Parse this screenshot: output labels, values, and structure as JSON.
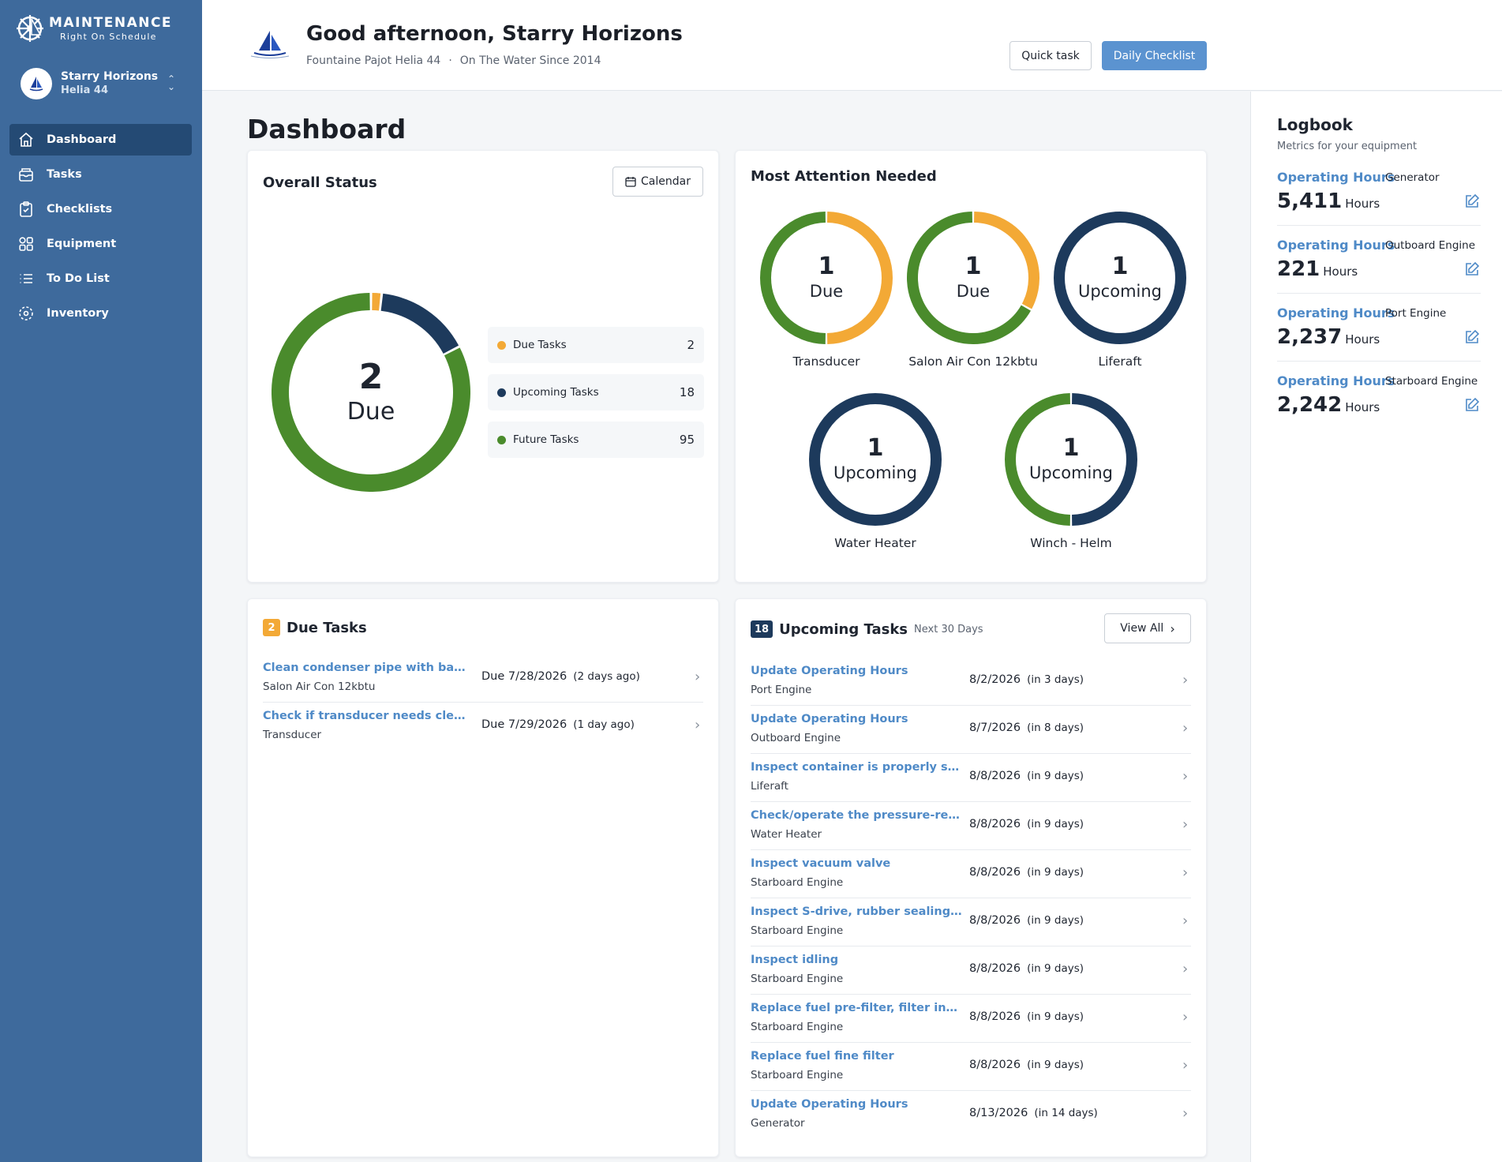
{
  "brand": {
    "title": "MAINTENANCE",
    "subtitle": "Right On Schedule"
  },
  "vessel": {
    "name": "Starry Horizons",
    "model": "Helia 44"
  },
  "sidebar": {
    "items": [
      {
        "label": "Dashboard",
        "icon": "home-icon",
        "active": true
      },
      {
        "label": "Tasks",
        "icon": "inbox-icon"
      },
      {
        "label": "Checklists",
        "icon": "clipboard-check-icon"
      },
      {
        "label": "Equipment",
        "icon": "grid-icon"
      },
      {
        "label": "To Do List",
        "icon": "list-icon"
      },
      {
        "label": "Inventory",
        "icon": "package-icon"
      }
    ]
  },
  "header": {
    "greeting": "Good afternoon, Starry Horizons",
    "boat_model": "Fountaine Pajot Helia 44",
    "separator": "·",
    "since": "On The Water Since 2014",
    "quick_task": "Quick task",
    "daily_checklist": "Daily Checklist"
  },
  "page_title": "Dashboard",
  "overall_status": {
    "title": "Overall Status",
    "calendar_button": "Calendar",
    "center_number": "2",
    "center_label": "Due",
    "legend": [
      {
        "label": "Due Tasks",
        "value": 2,
        "color": "#f3a936"
      },
      {
        "label": "Upcoming Tasks",
        "value": 18,
        "color": "#1d3a5c"
      },
      {
        "label": "Future Tasks",
        "value": 95,
        "color": "#4a8b2c"
      }
    ]
  },
  "attention": {
    "title": "Most Attention Needed",
    "rings": [
      {
        "count": "1",
        "status": "Due",
        "name": "Transducer",
        "fill": 0.5,
        "main_color": "#f3a936",
        "rest_color": "#4a8b2c"
      },
      {
        "count": "1",
        "status": "Due",
        "name": "Salon Air Con 12kbtu",
        "fill": 0.33,
        "main_color": "#f3a936",
        "rest_color": "#4a8b2c"
      },
      {
        "count": "1",
        "status": "Upcoming",
        "name": "Liferaft",
        "fill": 1.0,
        "main_color": "#1d3a5c",
        "rest_color": "#4a8b2c"
      },
      {
        "count": "1",
        "status": "Upcoming",
        "name": "Water Heater",
        "fill": 1.0,
        "main_color": "#1d3a5c",
        "rest_color": "#4a8b2c"
      },
      {
        "count": "1",
        "status": "Upcoming",
        "name": "Winch - Helm",
        "fill": 0.5,
        "main_color": "#1d3a5c",
        "rest_color": "#4a8b2c"
      }
    ]
  },
  "due_tasks": {
    "count": "2",
    "title": "Due Tasks",
    "rows": [
      {
        "title": "Clean condenser pipe with barnacle ...",
        "equipment": "Salon Air Con 12kbtu",
        "date": "Due 7/28/2026",
        "relative": "(2 days ago)"
      },
      {
        "title": "Check if transducer needs cleaning",
        "equipment": "Transducer",
        "date": "Due 7/29/2026",
        "relative": "(1 day ago)"
      }
    ]
  },
  "upcoming_tasks": {
    "count": "18",
    "title": "Upcoming Tasks",
    "subtitle": "Next 30 Days",
    "view_all": "View All",
    "rows": [
      {
        "title": "Update Operating Hours",
        "equipment": "Port Engine",
        "date": "8/2/2026",
        "relative": "(in 3 days)"
      },
      {
        "title": "Update Operating Hours",
        "equipment": "Outboard Engine",
        "date": "8/7/2026",
        "relative": "(in 8 days)"
      },
      {
        "title": "Inspect container is properly secured...",
        "equipment": "Liferaft",
        "date": "8/8/2026",
        "relative": "(in 9 days)"
      },
      {
        "title": "Check/operate the pressure-relief d...",
        "equipment": "Water Heater",
        "date": "8/8/2026",
        "relative": "(in 9 days)"
      },
      {
        "title": "Inspect vacuum valve",
        "equipment": "Starboard Engine",
        "date": "8/8/2026",
        "relative": "(in 9 days)"
      },
      {
        "title": "Inspect S-drive, rubber sealing betw...",
        "equipment": "Starboard Engine",
        "date": "8/8/2026",
        "relative": "(in 9 days)"
      },
      {
        "title": "Inspect idling",
        "equipment": "Starboard Engine",
        "date": "8/8/2026",
        "relative": "(in 9 days)"
      },
      {
        "title": "Replace fuel pre-filter, filter insert",
        "equipment": "Starboard Engine",
        "date": "8/8/2026",
        "relative": "(in 9 days)"
      },
      {
        "title": "Replace fuel fine filter",
        "equipment": "Starboard Engine",
        "date": "8/8/2026",
        "relative": "(in 9 days)"
      },
      {
        "title": "Update Operating Hours",
        "equipment": "Generator",
        "date": "8/13/2026",
        "relative": "(in 14 days)"
      }
    ]
  },
  "logbook": {
    "title": "Logbook",
    "subtitle": "Metrics for your equipment",
    "items": [
      {
        "metric": "Operating Hours",
        "equipment": "Generator",
        "value": "5,411",
        "unit": "Hours"
      },
      {
        "metric": "Operating Hours",
        "equipment": "Outboard Engine",
        "value": "221",
        "unit": "Hours"
      },
      {
        "metric": "Operating Hours",
        "equipment": "Port Engine",
        "value": "2,237",
        "unit": "Hours"
      },
      {
        "metric": "Operating Hours",
        "equipment": "Starboard Engine",
        "value": "2,242",
        "unit": "Hours"
      }
    ]
  }
}
